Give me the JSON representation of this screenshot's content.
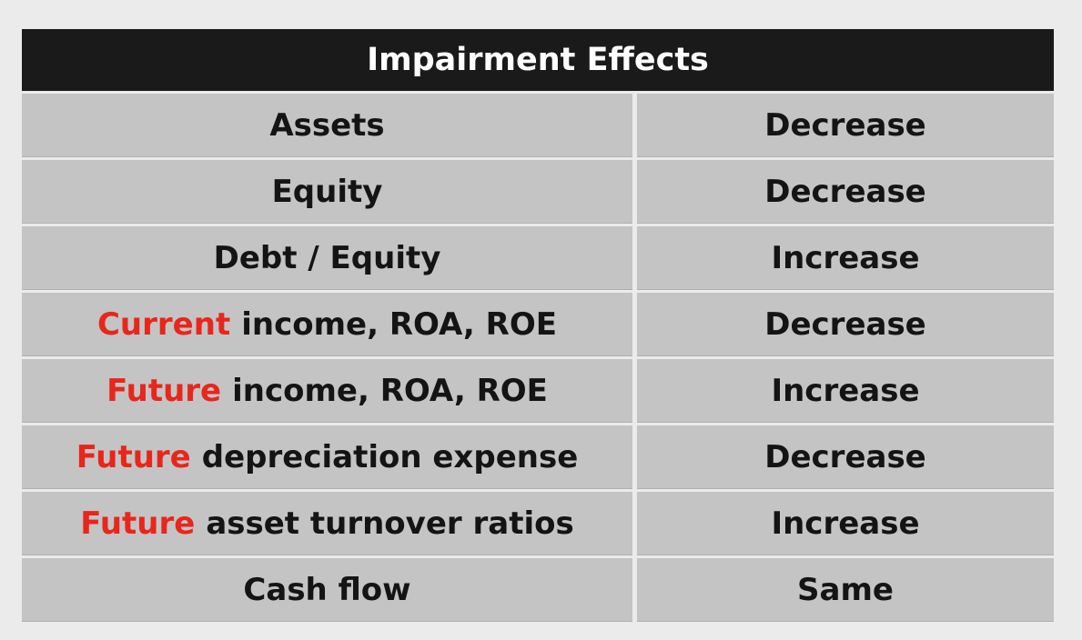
{
  "table": {
    "title": "Impairment Effects",
    "accent_color": "#e8261c",
    "rows": [
      {
        "prefix": "",
        "label": "Assets",
        "effect": "Decrease"
      },
      {
        "prefix": "",
        "label": "Equity",
        "effect": "Decrease"
      },
      {
        "prefix": "",
        "label": "Debt / Equity",
        "effect": "Increase"
      },
      {
        "prefix": "Current",
        "label": "income, ROA, ROE",
        "effect": "Decrease"
      },
      {
        "prefix": "Future",
        "label": "income, ROA, ROE",
        "effect": "Increase"
      },
      {
        "prefix": "Future",
        "label": "depreciation expense",
        "effect": "Decrease"
      },
      {
        "prefix": "Future",
        "label": "asset turnover ratios",
        "effect": "Increase"
      },
      {
        "prefix": "",
        "label": "Cash flow",
        "effect": "Same"
      }
    ]
  }
}
